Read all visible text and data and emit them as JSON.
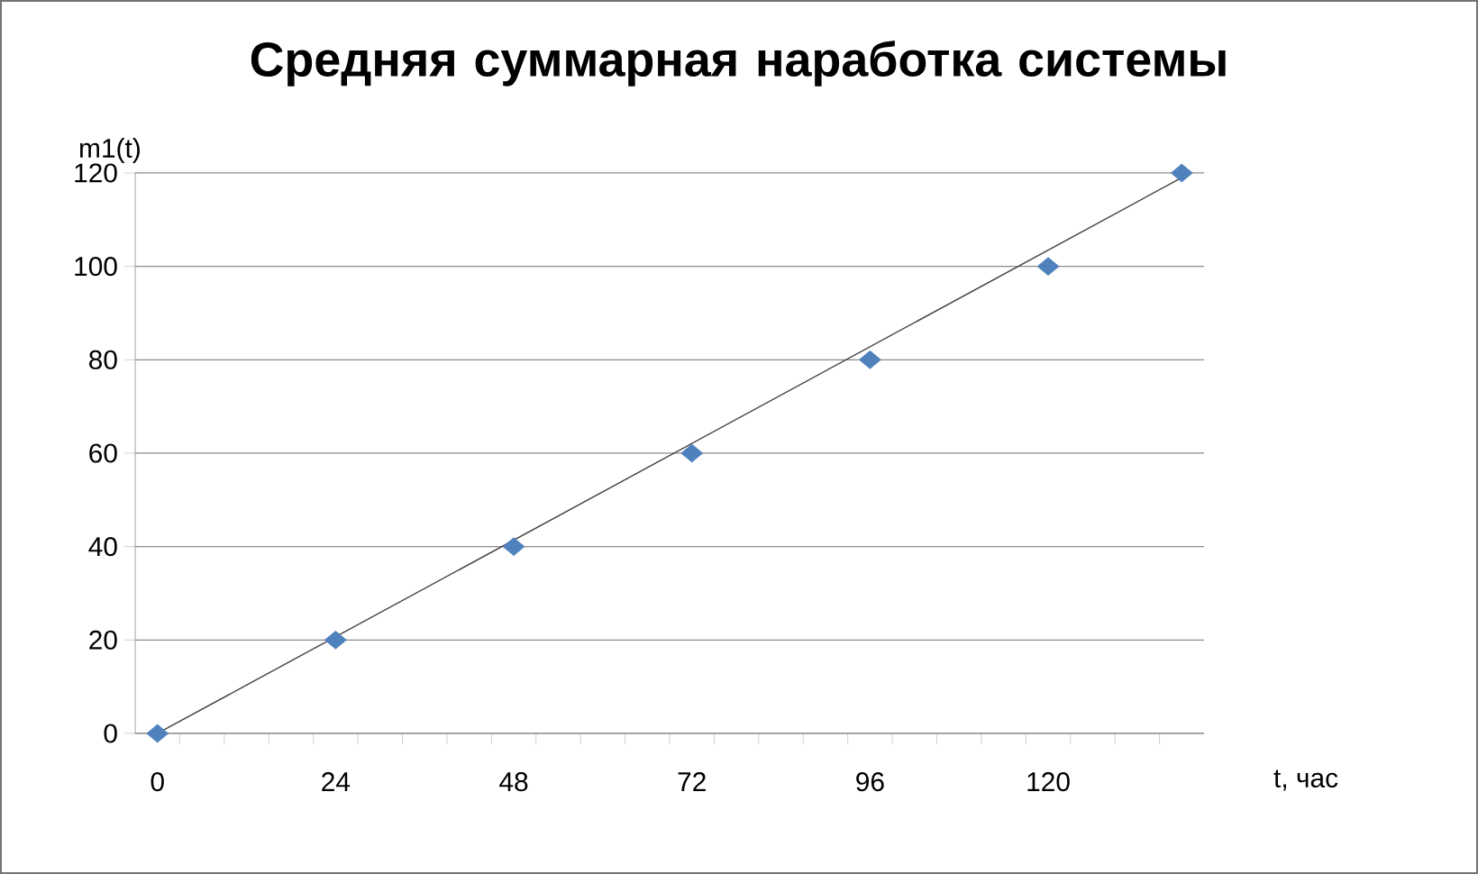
{
  "chart_data": {
    "type": "scatter",
    "title": "Средняя суммарная наработка системы",
    "xlabel": "t, час",
    "ylabel": "m1(t)",
    "series": [
      {
        "color": "#4f81bd",
        "marker": "diamond",
        "x": [
          0,
          24,
          48,
          72,
          96,
          120,
          138
        ],
        "values": [
          0,
          20,
          40,
          60,
          80,
          100,
          120
        ]
      },
      {
        "type": "line",
        "color": "#404040",
        "marker": "none",
        "line_style": "solid",
        "x": [
          0,
          138
        ],
        "values": [
          0,
          119
        ]
      }
    ],
    "xlim": [
      -3,
      141
    ],
    "ylim": [
      0,
      120
    ],
    "xticks": [
      0,
      24,
      48,
      72,
      96,
      120,
      {
        "value": 3,
        "label": null
      },
      {
        "value": 9,
        "label": null
      },
      {
        "value": 15,
        "label": null
      },
      {
        "value": 21,
        "label": null
      },
      {
        "value": 27,
        "label": null
      },
      {
        "value": 33,
        "label": null
      },
      {
        "value": 39,
        "label": null
      },
      {
        "value": 45,
        "label": null
      },
      {
        "value": 51,
        "label": null
      },
      {
        "value": 57,
        "label": null
      },
      {
        "value": 63,
        "label": null
      },
      {
        "value": 69,
        "label": null
      },
      {
        "value": 75,
        "label": null
      },
      {
        "value": 81,
        "label": null
      },
      {
        "value": 87,
        "label": null
      },
      {
        "value": 93,
        "label": null
      },
      {
        "value": 99,
        "label": null
      },
      {
        "value": 105,
        "label": null
      },
      {
        "value": 111,
        "label": null
      },
      {
        "value": 117,
        "label": null
      },
      {
        "value": 123,
        "label": null
      },
      {
        "value": 129,
        "label": null
      },
      {
        "value": 135,
        "label": null
      }
    ],
    "yticks": [
      0,
      20,
      40,
      60,
      80,
      100,
      120
    ],
    "grid": "y"
  }
}
